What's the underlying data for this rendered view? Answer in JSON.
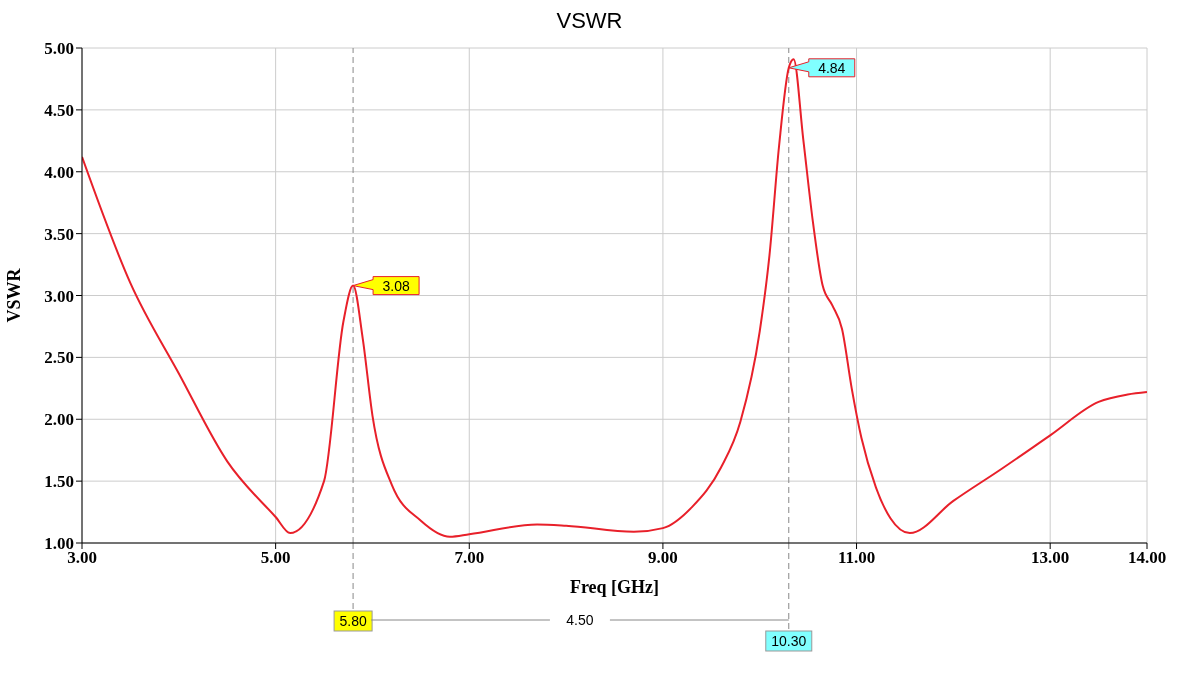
{
  "chart_data": {
    "type": "line",
    "title": "VSWR",
    "xlabel": "Freq [GHz]",
    "ylabel": "VSWR",
    "x": [
      3.0,
      3.5,
      4.0,
      4.5,
      5.0,
      5.15,
      5.5,
      5.7,
      5.8,
      5.9,
      6.0,
      6.2,
      6.5,
      6.8,
      7.0,
      7.7,
      8.0,
      8.7,
      9.0,
      9.3,
      9.6,
      9.8,
      10.0,
      10.1,
      10.2,
      10.3,
      10.35,
      10.45,
      10.55,
      10.65,
      10.75,
      10.85,
      10.95,
      11.05,
      11.2,
      11.35,
      11.55,
      12.0,
      12.5,
      13.0,
      13.5,
      13.8,
      14.0
    ],
    "series": [
      {
        "color": "#e8202a",
        "values": [
          4.12,
          3.1,
          2.37,
          1.66,
          1.21,
          1.08,
          1.5,
          2.79,
          3.08,
          2.65,
          2.03,
          1.47,
          1.18,
          1.05,
          1.07,
          1.15,
          1.14,
          1.09,
          1.12,
          1.29,
          1.61,
          1.98,
          2.71,
          3.32,
          4.21,
          4.84,
          4.91,
          4.26,
          3.59,
          3.08,
          2.92,
          2.73,
          2.25,
          1.85,
          1.45,
          1.2,
          1.08,
          1.34,
          1.6,
          1.87,
          2.14,
          2.2,
          2.22
        ]
      }
    ],
    "xlim": [
      3,
      14
    ],
    "xticks": [
      {
        "value": 3,
        "label": "3.00"
      },
      {
        "value": 5,
        "label": "5.00"
      },
      {
        "value": 7,
        "label": "7.00"
      },
      {
        "value": 9,
        "label": "9.00"
      },
      {
        "value": 11,
        "label": "11.00"
      },
      {
        "value": 13,
        "label": "13.00"
      },
      {
        "value": 14,
        "label": "14.00"
      }
    ],
    "ylim": [
      1,
      5
    ],
    "yticks": [
      {
        "value": 1,
        "label": "1.00"
      },
      {
        "value": 1.5,
        "label": "1.50"
      },
      {
        "value": 2,
        "label": "2.00"
      },
      {
        "value": 2.5,
        "label": "2.50"
      },
      {
        "value": 3,
        "label": "3.00"
      },
      {
        "value": 3.5,
        "label": "3.50"
      },
      {
        "value": 4,
        "label": "4.00"
      },
      {
        "value": 4.5,
        "label": "4.50"
      },
      {
        "value": 5,
        "label": "5.00"
      }
    ],
    "grid": true,
    "legend": false,
    "marker": "none",
    "line_style": "solid",
    "ref_lines": [
      {
        "axis": "x",
        "value": 5.8,
        "label": "5.80",
        "color": "#888888",
        "line_style": "dashed"
      },
      {
        "axis": "x",
        "value": 10.3,
        "label": "10.30",
        "color": "#888888",
        "line_style": "dashed"
      }
    ],
    "annotations": [
      {
        "text": "3.08",
        "x": 5.8,
        "y": 3.08
      },
      {
        "text": "4.84",
        "x": 10.3,
        "y": 4.84
      },
      "4.50"
    ]
  }
}
